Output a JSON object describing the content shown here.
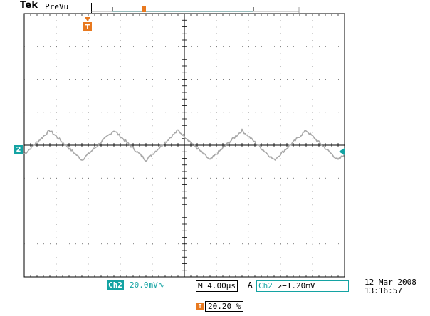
{
  "header": {
    "brand": "Tek",
    "mode": "PreVu"
  },
  "icons": {
    "trigger_position": "trigger-position-icon",
    "channel_marker": "channel-2-marker-icon",
    "trigger_level": "trigger-level-arrow-icon"
  },
  "colors": {
    "trace": "#a8a8a8",
    "channel": "#14a3a3",
    "trigger": "#e8791f",
    "grid": "#000000"
  },
  "channel_marker": "2",
  "status": {
    "ch_label": "Ch2",
    "volts_per_div": "20.0mV",
    "bw_symbol": "∿",
    "timebase": "M 4.00µs",
    "acq_mode": "A",
    "trig_source": "Ch2",
    "trig_slope": "↗",
    "trig_level": "−1.20mV"
  },
  "datetime": {
    "date": "12 Mar  2008",
    "time": "13:16:57"
  },
  "trigger": {
    "icon_label": "T",
    "position_pct": "20.20 %"
  },
  "waveform": {
    "period_divisions": 2.0,
    "amplitude_divisions": 0.45,
    "offset_divisions": 0.0
  }
}
